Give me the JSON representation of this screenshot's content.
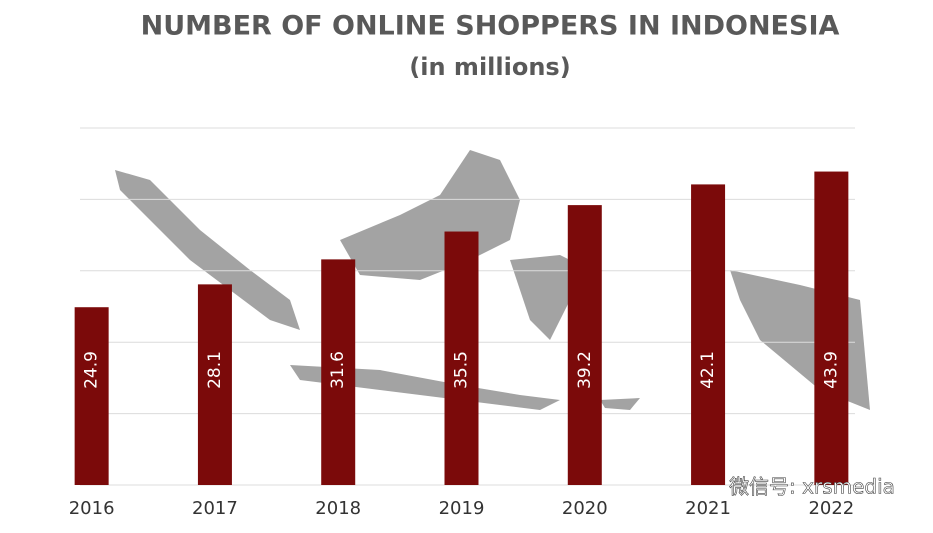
{
  "chart_data": {
    "type": "bar",
    "title": "NUMBER OF ONLINE SHOPPERS IN INDONESIA",
    "subtitle": "(in millions)",
    "categories": [
      "2016",
      "2017",
      "2018",
      "2019",
      "2020",
      "2021",
      "2022"
    ],
    "values": [
      24.9,
      28.1,
      31.6,
      35.5,
      39.2,
      42.1,
      43.9
    ],
    "color": "#7b0a0a",
    "ylim": [
      0,
      50
    ],
    "yticks": [
      0,
      10,
      20,
      30,
      40,
      50
    ],
    "grid": true,
    "watermark": "微信号: xrsmedia"
  }
}
